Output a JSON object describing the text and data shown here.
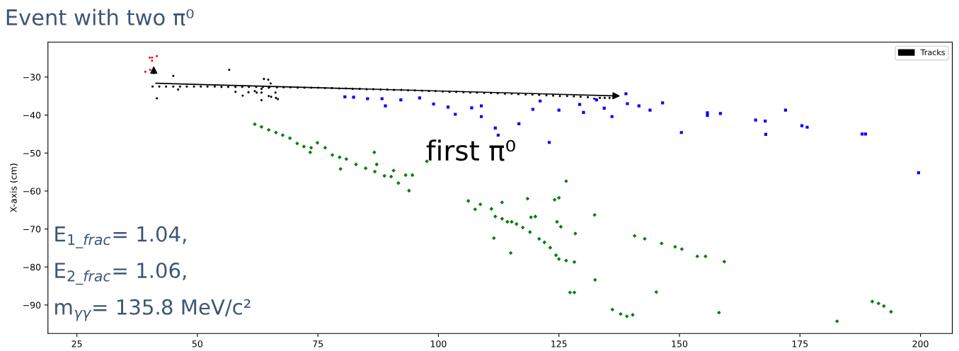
{
  "chart_data": {
    "type": "scatter",
    "title": "Event with two π⁰",
    "ylabel": "X-axis (cm)",
    "xlim": [
      19,
      206.6
    ],
    "ylim": [
      -97.5,
      -20.8
    ],
    "xticks": [
      25,
      50,
      75,
      100,
      125,
      150,
      175,
      200
    ],
    "yticks": [
      -90,
      -80,
      -70,
      -60,
      -50,
      -40,
      -30
    ],
    "grid": false,
    "legend": "top right",
    "marker": "circle",
    "annotations": [
      "first π⁰",
      "E$_{1_frac}$= 1.04,",
      "E$_{2_frac}$= 1.06,",
      "m$_{γγ}$= 135.8 MeV/c²"
    ],
    "series": [
      {
        "color": "#ff0000",
        "x": [
          39.2,
          40.1,
          40.6,
          40.6,
          41.6,
          40.2
        ],
        "values": [
          -28.6,
          -24.9,
          -24.9,
          -25.7,
          -24.5,
          -28.1
        ]
      },
      {
        "name": "Tracks",
        "color": "#000000",
        "x": [
          40.7,
          42.1,
          43.5,
          45.0,
          46.4,
          47.8,
          49.3,
          50.7,
          52.1,
          53.6,
          55.0,
          56.4,
          57.9,
          59.3,
          60.7,
          62.2,
          63.6,
          65.0,
          66.5,
          67.9,
          69.3,
          70.8,
          72.2,
          73.6,
          75.1,
          76.5,
          77.9,
          79.4,
          80.8,
          82.2,
          83.7,
          85.1,
          86.5,
          88.0,
          89.4,
          90.8,
          92.3,
          93.7,
          95.1,
          96.6,
          98.0,
          99.4,
          100.9,
          102.3,
          103.7,
          105.2,
          106.6,
          108.0,
          109.5,
          110.9,
          112.3,
          113.8,
          115.2,
          116.6,
          118.1,
          119.5,
          120.9,
          122.4,
          123.8,
          125.2,
          126.7,
          128.1,
          129.5,
          131.0,
          132.3,
          133.5,
          134.5,
          135.5,
          45.0,
          56.6,
          41.6,
          46.0,
          57.9,
          59.4,
          60.6,
          61.9,
          62.3,
          63.3,
          63.3,
          63.3,
          63.8,
          64.7,
          64.8,
          64.8,
          65.3,
          66.2,
          66.3,
          66.7,
          65.2
        ],
        "values": [
          -32.5,
          -32.5,
          -32.5,
          -32.5,
          -32.5,
          -32.5,
          -32.5,
          -32.5,
          -32.5,
          -32.5,
          -32.6,
          -32.6,
          -32.6,
          -32.6,
          -32.6,
          -32.6,
          -32.6,
          -32.6,
          -32.7,
          -32.7,
          -32.7,
          -32.8,
          -32.8,
          -32.8,
          -32.8,
          -32.9,
          -32.9,
          -33.0,
          -33.0,
          -33.1,
          -33.1,
          -33.2,
          -33.2,
          -33.3,
          -33.3,
          -33.4,
          -33.4,
          -33.5,
          -33.5,
          -33.6,
          -33.7,
          -33.7,
          -33.8,
          -33.9,
          -33.9,
          -34.0,
          -34.1,
          -34.1,
          -34.2,
          -34.2,
          -34.3,
          -34.4,
          -34.4,
          -34.5,
          -34.6,
          -34.6,
          -34.7,
          -34.8,
          -34.9,
          -35.0,
          -35.0,
          -35.1,
          -35.2,
          -35.3,
          -35.7,
          -35.5,
          -35.5,
          -35.5,
          -29.7,
          -28.1,
          -35.6,
          -33.3,
          -33.9,
          -34.9,
          -34.0,
          -33.7,
          -34.1,
          -33.1,
          -34.1,
          -36.1,
          -30.5,
          -30.7,
          -32.8,
          -35.0,
          -35.2,
          -34.1,
          -35.5,
          -35.8,
          -31.7
        ]
      },
      {
        "color": "#0000ff",
        "marker": "square",
        "x": [
          80.6,
          82.4,
          85.3,
          88.3,
          89.0,
          92.2,
          96.1,
          99.0,
          102.0,
          103.5,
          106.9,
          108.9,
          108.9,
          111.8,
          112.4,
          116.7,
          119.6,
          121.1,
          123.0,
          125.0,
          129.3,
          130.1,
          132.8,
          134.4,
          136.0,
          138.9,
          139.2,
          141.6,
          143.9,
          146.5,
          150.4,
          155.8,
          155.8,
          158.5,
          165.8,
          167.8,
          167.9,
          172.0,
          175.4,
          176.5,
          187.9,
          188.6,
          199.6
        ],
        "values": [
          -35.2,
          -35.3,
          -35.7,
          -35.7,
          -37.6,
          -36.0,
          -35.5,
          -37.1,
          -37.9,
          -39.8,
          -38.1,
          -37.6,
          -40.4,
          -43.4,
          -45.3,
          -42.3,
          -38.5,
          -36.3,
          -47.2,
          -38.7,
          -37.2,
          -39.3,
          -36.0,
          -38.2,
          -40.4,
          -34.4,
          -37.0,
          -37.6,
          -38.7,
          -36.8,
          -44.6,
          -39.4,
          -40.1,
          -39.6,
          -41.3,
          -41.6,
          -45.1,
          -38.7,
          -42.8,
          -43.2,
          -45.0,
          -45.0,
          -55.2
        ]
      },
      {
        "color": "#008000",
        "marker": "diamond",
        "x": [
          61.9,
          63.3,
          64.8,
          66.3,
          67.7,
          69.2,
          70.7,
          72.1,
          73.6,
          74.9,
          73.4,
          76.5,
          78.0,
          79.5,
          79.7,
          80.9,
          82.9,
          84.9,
          86.8,
          88.8,
          86.7,
          87.2,
          90.7,
          90.2,
          91.7,
          93.2,
          94.6,
          93.9,
          97.6,
          106.2,
          108.7,
          113.2,
          118.5,
          107.6,
          111.0,
          111.8,
          113.2,
          111.5,
          114.3,
          115.2,
          116.2,
          117.5,
          119.0,
          115.0,
          119.2,
          120.1,
          120.9,
          122.0,
          123.2,
          124.4,
          125.0,
          126.5,
          128.2,
          124.1,
          125.0,
          124.6,
          125.4,
          128.4,
          127.3,
          128.2,
          132.4,
          132.5,
          136.1,
          137.8,
          139.1,
          140.3,
          140.7,
          142.8,
          146.3,
          149.1,
          150.5,
          153.7,
          155.4,
          159.3,
          145.2,
          158.2,
          182.7,
          190.0,
          191.3,
          192.4,
          193.9,
          126.5
        ],
        "values": [
          -42.4,
          -43.1,
          -43.9,
          -44.6,
          -45.3,
          -46.1,
          -47.5,
          -48.3,
          -48.6,
          -47.3,
          -49.8,
          -48.6,
          -50.5,
          -51.1,
          -54.2,
          -51.6,
          -53.0,
          -54.0,
          -54.9,
          -56.0,
          -49.8,
          -53.0,
          -54.6,
          -56.2,
          -57.9,
          -55.8,
          -55.8,
          -59.9,
          -52.2,
          -62.6,
          -63.5,
          -63.0,
          -62.0,
          -64.8,
          -64.7,
          -66.7,
          -67.3,
          -72.4,
          -68.1,
          -68.1,
          -68.7,
          -69.6,
          -70.8,
          -76.3,
          -66.9,
          -66.7,
          -72.6,
          -73.5,
          -74.9,
          -76.9,
          -77.9,
          -78.3,
          -78.7,
          -62.3,
          -61.8,
          -68.1,
          -69.4,
          -71.2,
          -86.7,
          -86.7,
          -66.3,
          -83.4,
          -91.2,
          -92.4,
          -93.0,
          -92.6,
          -71.8,
          -72.6,
          -73.8,
          -74.7,
          -75.3,
          -77.2,
          -77.2,
          -78.6,
          -86.6,
          -92.0,
          -94.3,
          -89.1,
          -89.6,
          -90.3,
          -91.8,
          -57.4
        ]
      }
    ]
  }
}
